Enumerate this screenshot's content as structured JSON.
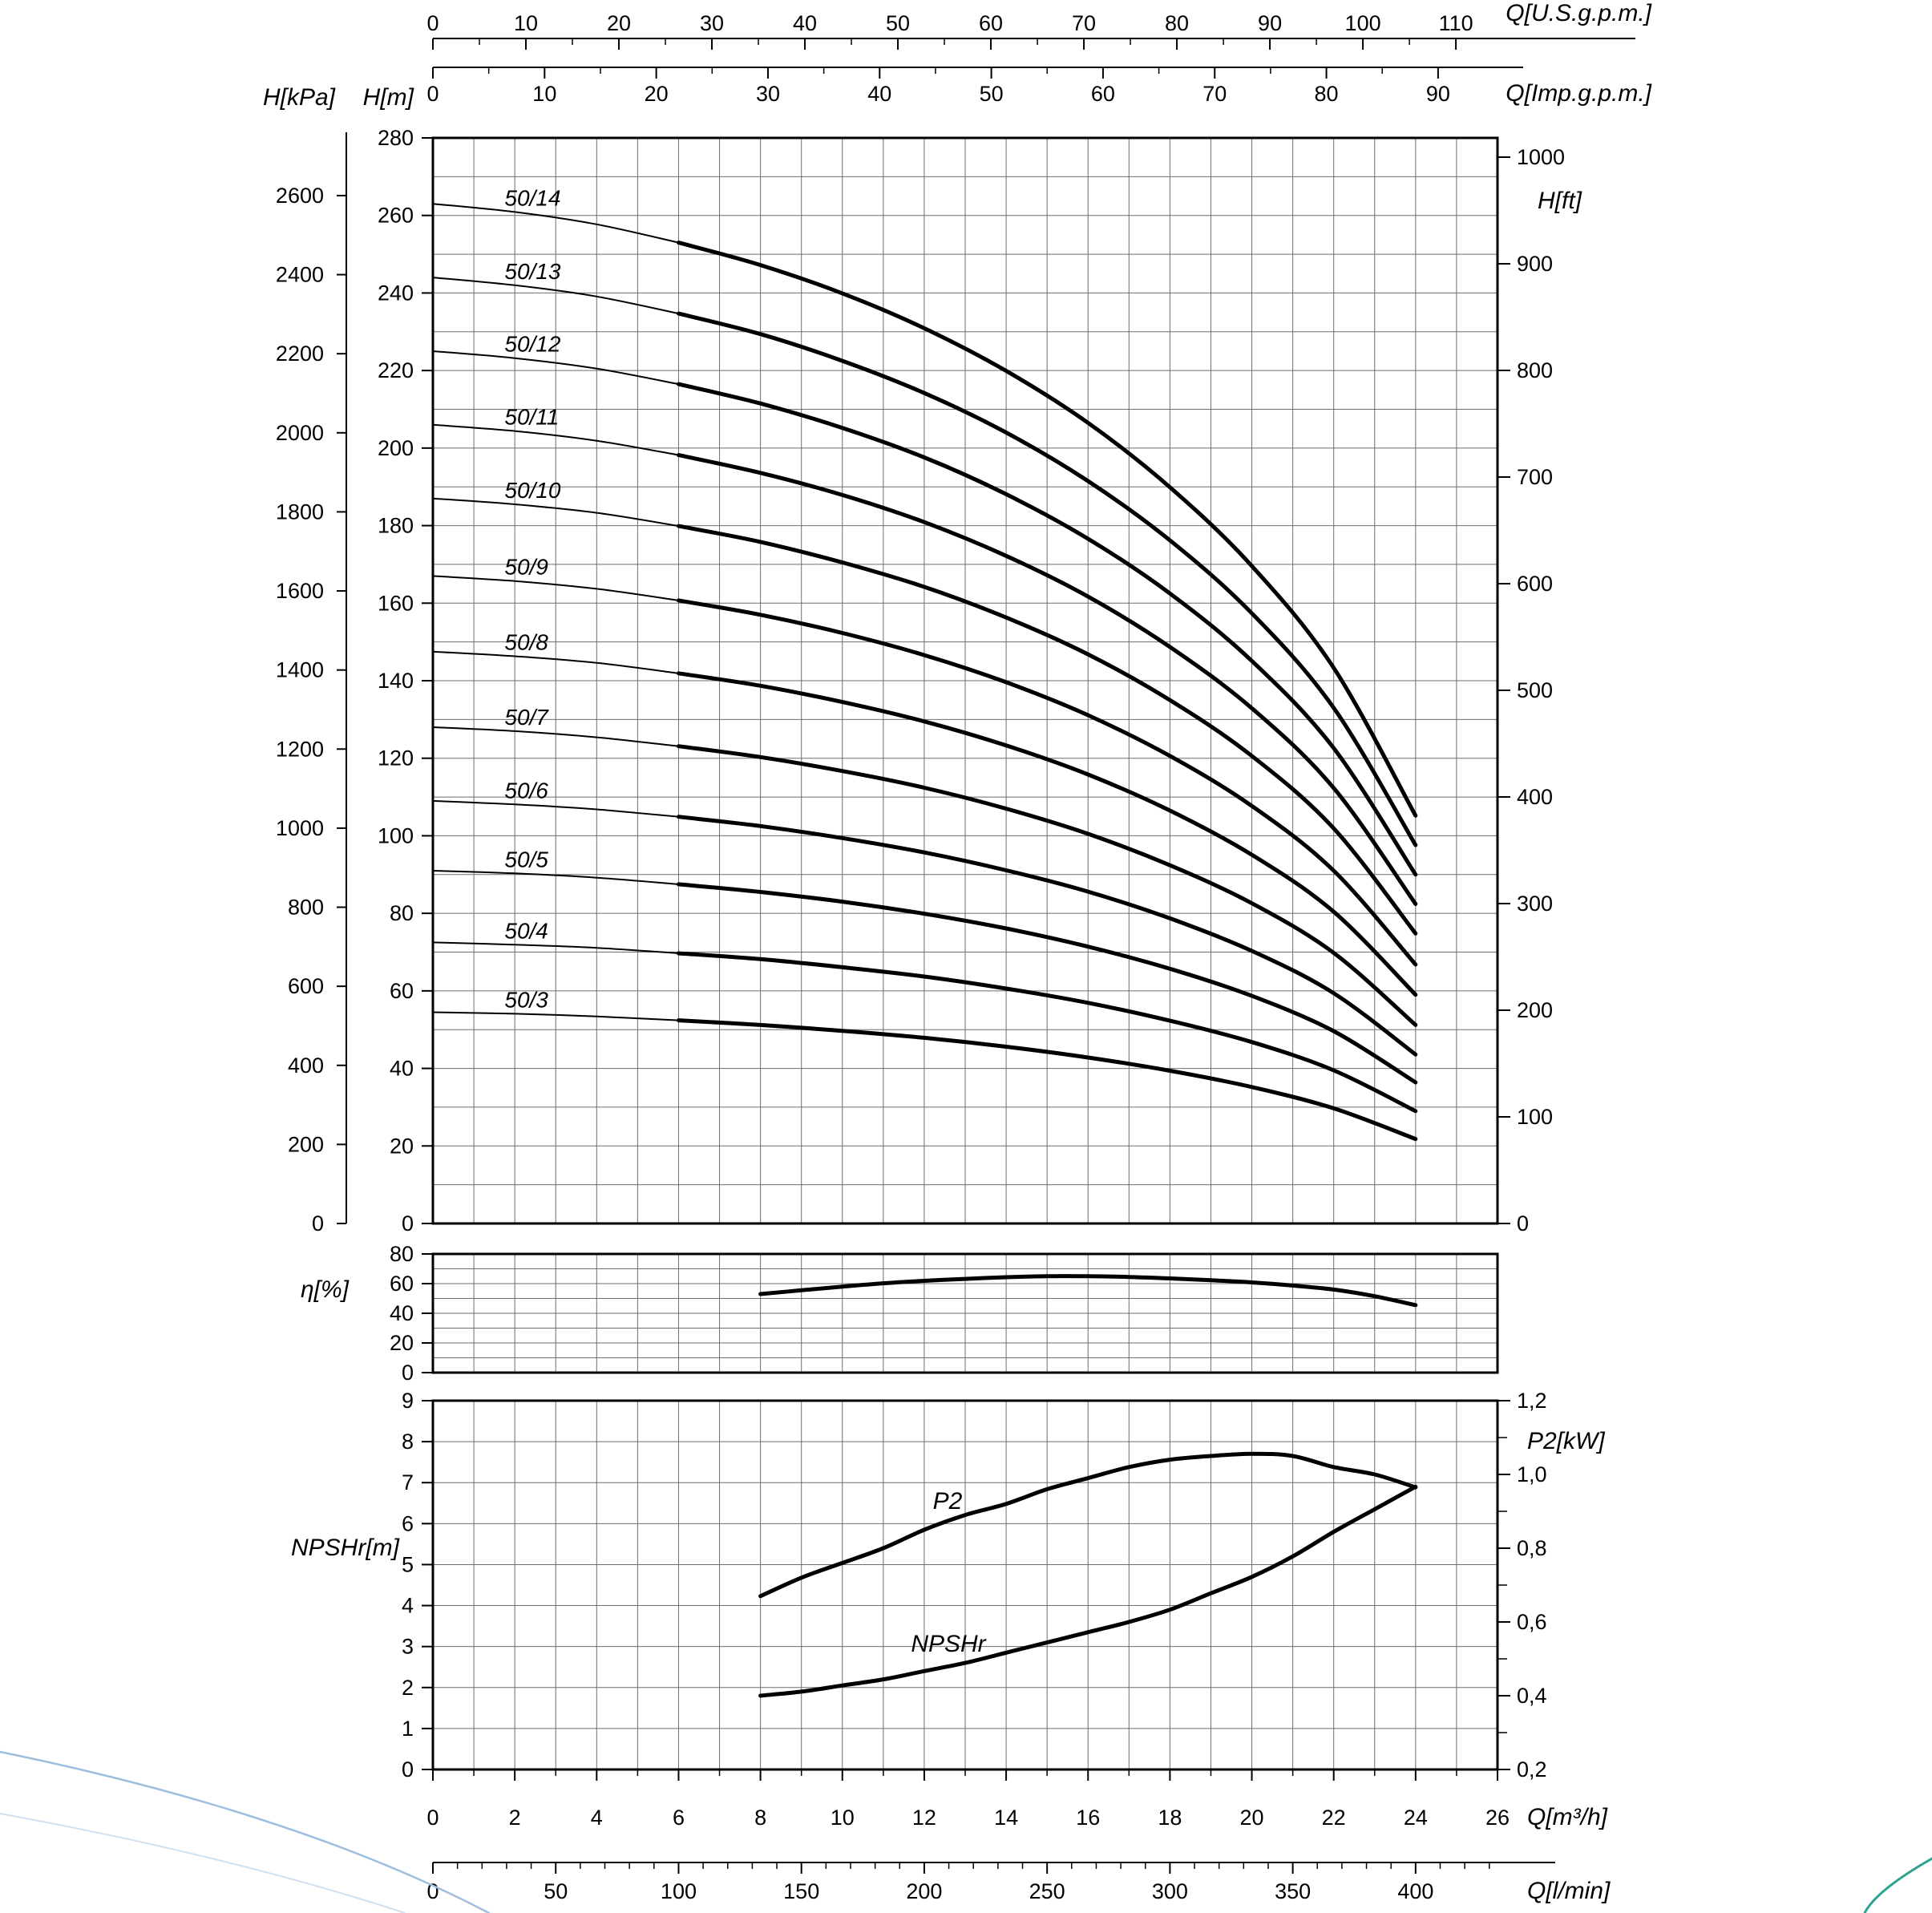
{
  "page": {
    "background": "#ffffff",
    "ink": "#000000",
    "grid_color": "#6e6e6e",
    "decor_blue": "#9dbede",
    "decor_blue_light": "#cfe0f0",
    "decor_teal": "#2ba390"
  },
  "chart_data": [
    {
      "type": "line",
      "title": "Pump head curves",
      "x_unit": "Q[m³/h]",
      "xlim": [
        0,
        26
      ],
      "ylim_m": [
        0,
        280
      ],
      "thick_from_q": 6,
      "x_axes": [
        {
          "label": "Q[U.S.g.p.m.]",
          "per_m3h": 4.40287,
          "ticks": [
            0,
            10,
            20,
            30,
            40,
            50,
            60,
            70,
            80,
            90,
            100,
            110
          ]
        },
        {
          "label": "Q[Imp.g.p.m.]",
          "per_m3h": 3.66615,
          "ticks": [
            0,
            10,
            20,
            30,
            40,
            50,
            60,
            70,
            80,
            90
          ]
        }
      ],
      "y_axes": [
        {
          "label": "H[kPa]",
          "ticks": [
            0,
            200,
            400,
            600,
            800,
            1000,
            1200,
            1400,
            1600,
            1800,
            2000,
            2200,
            2400,
            2600
          ]
        },
        {
          "label": "H[m]",
          "ticks": [
            0,
            20,
            40,
            60,
            80,
            100,
            120,
            140,
            160,
            180,
            200,
            220,
            240,
            260,
            280
          ]
        },
        {
          "label": "H[ft]",
          "ticks": [
            0,
            100,
            200,
            300,
            400,
            500,
            600,
            700,
            800,
            900,
            1000
          ]
        }
      ],
      "q": [
        0,
        2,
        4,
        6,
        8,
        10,
        12,
        14,
        16,
        18,
        20,
        22,
        24
      ],
      "series": [
        {
          "name": "50/14",
          "h": [
            263.0,
            260.9,
            257.7,
            253.0,
            247.2,
            239.9,
            230.9,
            219.9,
            206.5,
            189.9,
            169.6,
            143.3,
            105.2
          ]
        },
        {
          "name": "50/13",
          "h": [
            244.0,
            242.0,
            239.1,
            234.7,
            229.4,
            222.5,
            214.2,
            204.0,
            191.5,
            176.2,
            157.4,
            133.0,
            97.6
          ]
        },
        {
          "name": "50/12",
          "h": [
            225.0,
            223.2,
            220.5,
            216.5,
            211.5,
            205.2,
            197.6,
            188.1,
            176.6,
            162.5,
            145.1,
            122.6,
            90.0
          ]
        },
        {
          "name": "50/11",
          "h": [
            206.0,
            204.4,
            201.9,
            198.2,
            193.6,
            187.9,
            180.9,
            172.2,
            161.7,
            148.7,
            132.9,
            112.3,
            82.4
          ]
        },
        {
          "name": "50/10",
          "h": [
            187.0,
            185.5,
            183.3,
            179.9,
            175.8,
            170.5,
            164.2,
            156.3,
            146.8,
            135.0,
            120.6,
            101.9,
            74.8
          ]
        },
        {
          "name": "50/9",
          "h": [
            167.0,
            165.7,
            163.7,
            160.7,
            157.0,
            152.3,
            146.6,
            139.6,
            131.1,
            120.6,
            107.7,
            91.0,
            66.8
          ]
        },
        {
          "name": "50/8",
          "h": [
            147.5,
            146.3,
            144.6,
            141.9,
            138.7,
            134.5,
            129.5,
            123.3,
            115.8,
            106.5,
            95.1,
            80.4,
            59.0
          ]
        },
        {
          "name": "50/7",
          "h": [
            128.0,
            127.0,
            125.4,
            123.1,
            120.3,
            116.7,
            112.4,
            107.0,
            100.5,
            92.4,
            82.6,
            69.8,
            51.2
          ]
        },
        {
          "name": "50/6",
          "h": [
            109.0,
            108.1,
            106.8,
            104.9,
            102.5,
            99.4,
            95.7,
            91.1,
            85.6,
            78.7,
            70.3,
            59.4,
            43.6
          ]
        },
        {
          "name": "50/5",
          "h": [
            91.0,
            90.3,
            89.2,
            87.5,
            85.5,
            83.0,
            79.9,
            76.1,
            71.4,
            65.7,
            58.7,
            49.6,
            36.4
          ]
        },
        {
          "name": "50/4",
          "h": [
            72.5,
            71.9,
            71.1,
            69.7,
            68.2,
            66.1,
            63.7,
            60.6,
            56.9,
            52.3,
            46.8,
            39.5,
            29.0
          ]
        },
        {
          "name": "50/3",
          "h": [
            54.5,
            54.1,
            53.4,
            52.4,
            51.2,
            49.7,
            47.9,
            45.6,
            42.8,
            39.4,
            35.2,
            29.7,
            21.8
          ]
        }
      ]
    },
    {
      "type": "line",
      "title": "Efficiency",
      "ylabel": "η[%]",
      "ylim": [
        0,
        80
      ],
      "yticks": [
        0,
        20,
        40,
        60,
        80
      ],
      "points": [
        [
          8,
          53
        ],
        [
          9,
          55.5
        ],
        [
          10,
          58
        ],
        [
          11,
          60.2
        ],
        [
          12,
          61.9
        ],
        [
          13,
          63.2
        ],
        [
          14,
          64.3
        ],
        [
          15,
          65
        ],
        [
          16,
          65
        ],
        [
          17,
          64.5
        ],
        [
          18,
          63.5
        ],
        [
          19,
          62.3
        ],
        [
          20,
          60.8
        ],
        [
          21,
          58.7
        ],
        [
          22,
          56
        ],
        [
          23,
          51.5
        ],
        [
          24,
          45.5
        ]
      ]
    },
    {
      "type": "line",
      "title": "NPSHr and P2",
      "left_label": "NPSHr[m]",
      "left_ylim": [
        0,
        9
      ],
      "left_ticks": [
        0,
        1,
        2,
        3,
        4,
        5,
        6,
        7,
        8,
        9
      ],
      "right_label": "P2[kW]",
      "right_ylim": [
        0.2,
        1.2
      ],
      "right_ticks": [
        {
          "v": 0.2,
          "label": "0,2"
        },
        {
          "v": 0.4,
          "label": "0,4"
        },
        {
          "v": 0.6,
          "label": "0,6"
        },
        {
          "v": 0.8,
          "label": "0,8"
        },
        {
          "v": 1.0,
          "label": "1,0"
        },
        {
          "v": 1.2,
          "label": "1,2"
        }
      ],
      "series": [
        {
          "name": "P2",
          "axis": "right",
          "points": [
            [
              8,
              0.67
            ],
            [
              9,
              0.72
            ],
            [
              10,
              0.76
            ],
            [
              11,
              0.8
            ],
            [
              12,
              0.85
            ],
            [
              13,
              0.89
            ],
            [
              14,
              0.92
            ],
            [
              15,
              0.96
            ],
            [
              16,
              0.99
            ],
            [
              17,
              1.02
            ],
            [
              18,
              1.04
            ],
            [
              19,
              1.05
            ],
            [
              20,
              1.056
            ],
            [
              21,
              1.05
            ],
            [
              22,
              1.02
            ],
            [
              23,
              1.0
            ],
            [
              24,
              0.965
            ]
          ]
        },
        {
          "name": "NPSHr",
          "axis": "left",
          "points": [
            [
              8,
              1.8
            ],
            [
              9,
              1.9
            ],
            [
              10,
              2.05
            ],
            [
              11,
              2.2
            ],
            [
              12,
              2.4
            ],
            [
              13,
              2.6
            ],
            [
              14,
              2.85
            ],
            [
              15,
              3.1
            ],
            [
              16,
              3.35
            ],
            [
              17,
              3.6
            ],
            [
              18,
              3.9
            ],
            [
              19,
              4.3
            ],
            [
              20,
              4.7
            ],
            [
              21,
              5.2
            ],
            [
              22,
              5.8
            ],
            [
              23,
              6.35
            ],
            [
              24,
              6.9
            ]
          ]
        }
      ]
    }
  ],
  "bottom_axes": [
    {
      "label": "Q[m³/h]",
      "per_m3h": 1,
      "ticks": [
        0,
        2,
        4,
        6,
        8,
        10,
        12,
        14,
        16,
        18,
        20,
        22,
        24,
        26
      ]
    },
    {
      "label": "Q[l/min]",
      "per_m3h": 16.6667,
      "ticks": [
        0,
        50,
        100,
        150,
        200,
        250,
        300,
        350,
        400
      ]
    }
  ]
}
